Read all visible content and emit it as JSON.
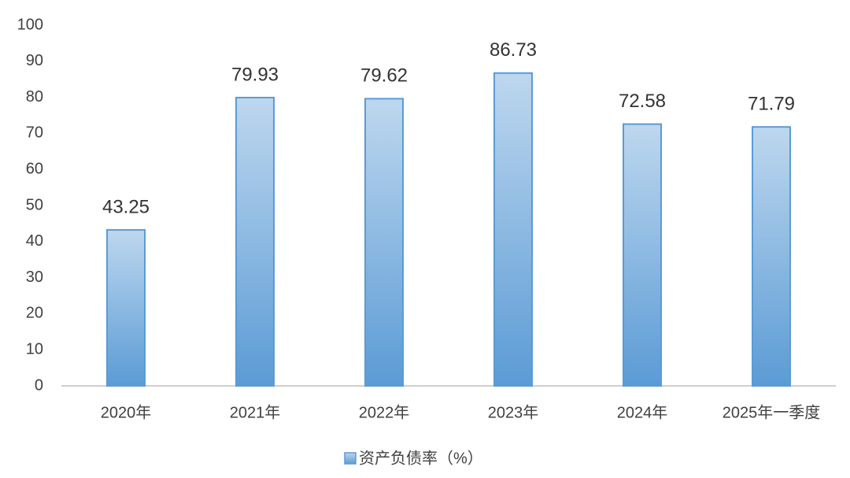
{
  "chart_data": {
    "type": "bar",
    "categories": [
      "2020年",
      "2021年",
      "2022年",
      "2023年",
      "2024年",
      "2025年一季度"
    ],
    "series": [
      {
        "name": "资产负债率（%）",
        "color": "#5b9bd5",
        "values": [
          43.25,
          79.93,
          79.62,
          86.73,
          72.58,
          71.79
        ]
      }
    ],
    "ylim": [
      0,
      100
    ],
    "yticks": [
      0,
      10,
      20,
      30,
      40,
      50,
      60,
      70,
      80,
      90,
      100
    ],
    "grid": false,
    "legend": "bottom",
    "data_labels": true
  }
}
